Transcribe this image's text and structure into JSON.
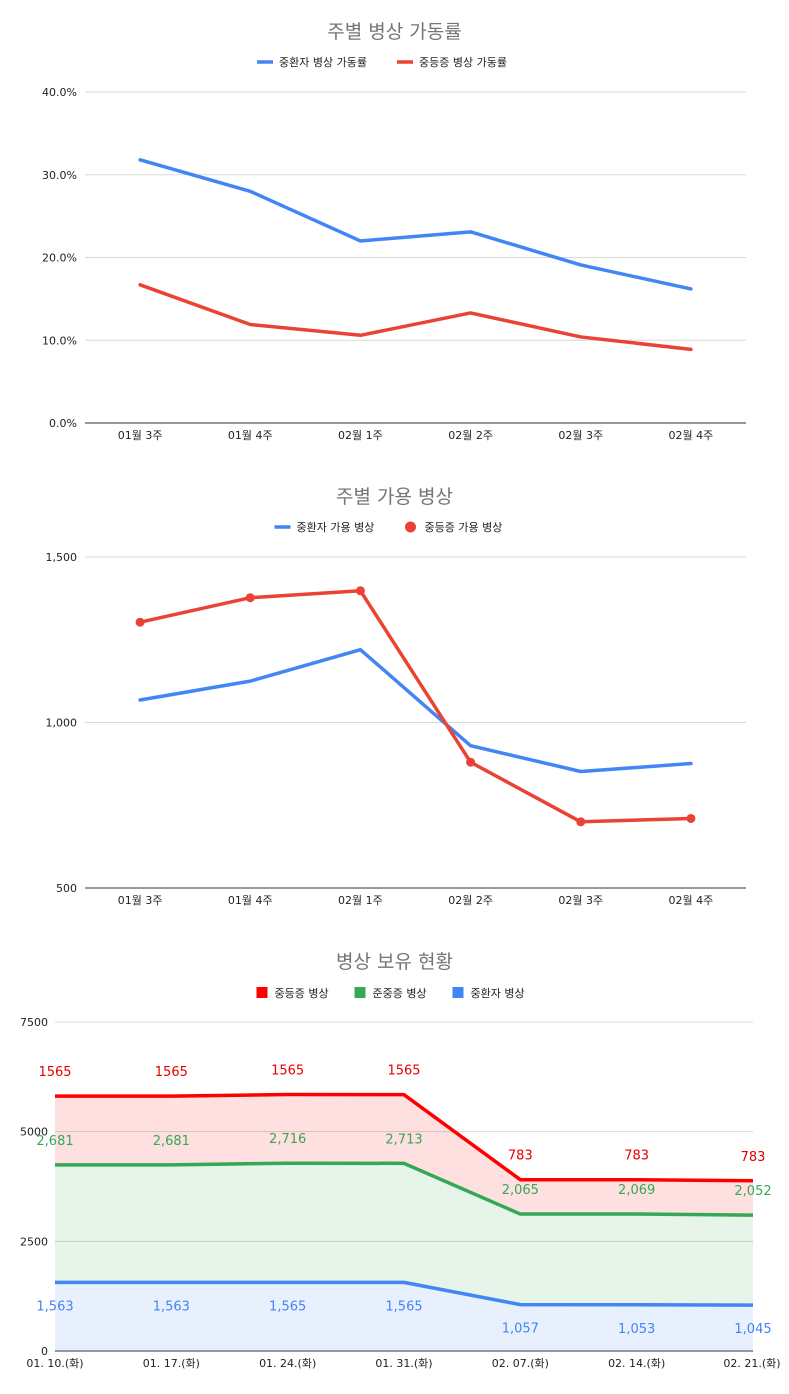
{
  "chart_data": [
    {
      "type": "line",
      "title": "주별 병상 가동률",
      "categories": [
        "01월 3주",
        "01월 4주",
        "02월 1주",
        "02월 2주",
        "02월 3주",
        "02월 4주"
      ],
      "series": [
        {
          "name": "중환자 병상 가동률",
          "color": "#4285f4",
          "values": [
            31.8,
            28.0,
            22.0,
            23.1,
            19.1,
            16.2
          ]
        },
        {
          "name": "중등증 병상 가동률",
          "color": "#ea4335",
          "values": [
            16.7,
            11.9,
            10.6,
            13.3,
            10.4,
            8.9
          ]
        }
      ],
      "yticks": [
        "0.0%",
        "10.0%",
        "20.0%",
        "30.0%",
        "40.0%"
      ],
      "ylim": [
        0,
        40
      ],
      "grid": true,
      "legend": "top"
    },
    {
      "type": "line",
      "title": "주별 가용 병상",
      "categories": [
        "01월 3주",
        "01월 4주",
        "02월 1주",
        "02월 2주",
        "02월 3주",
        "02월 4주"
      ],
      "series": [
        {
          "name": "중환자 가용 병상",
          "color": "#4285f4",
          "marker": "none",
          "values": [
            1068,
            1125,
            1220,
            930,
            852,
            876
          ]
        },
        {
          "name": "중등증 가용 병상",
          "color": "#ea4335",
          "marker": "circle",
          "values": [
            1303,
            1377,
            1398,
            880,
            700,
            710
          ]
        }
      ],
      "yticks": [
        "500",
        "1,000",
        "1,500"
      ],
      "ylim": [
        500,
        1500
      ],
      "grid": true,
      "legend": "top"
    },
    {
      "type": "area",
      "stacked": true,
      "title": "병상 보유 현황",
      "categories": [
        "01. 10.(화)",
        "01. 17.(화)",
        "01. 24.(화)",
        "01. 31.(화)",
        "02. 07.(화)",
        "02. 14.(화)",
        "02. 21.(화)"
      ],
      "legend_order": [
        "중등증 병상",
        "준중증 병상",
        "중환자 병상"
      ],
      "series": [
        {
          "name": "중환자 병상",
          "color": "#4285f4",
          "values": [
            1563,
            1563,
            1565,
            1565,
            1057,
            1053,
            1045
          ],
          "labels": [
            "1,563",
            "1,563",
            "1,565",
            "1,565",
            "1,057",
            "1,053",
            "1,045"
          ]
        },
        {
          "name": "준중증 병상",
          "color": "#34a853",
          "values": [
            2681,
            2681,
            2716,
            2713,
            2065,
            2069,
            2052
          ],
          "labels": [
            "2,681",
            "2,681",
            "2,716",
            "2,713",
            "2,065",
            "2,069",
            "2,052"
          ]
        },
        {
          "name": "중등증 병상",
          "color": "#ff0000",
          "values": [
            1565,
            1565,
            1565,
            1565,
            783,
            783,
            783
          ],
          "labels": [
            "1565",
            "1565",
            "1565",
            "1565",
            "783",
            "783",
            "783"
          ]
        }
      ],
      "yticks": [
        "0",
        "2500",
        "5000",
        "7500"
      ],
      "ylim": [
        0,
        7500
      ],
      "grid": true,
      "legend": "top"
    }
  ]
}
